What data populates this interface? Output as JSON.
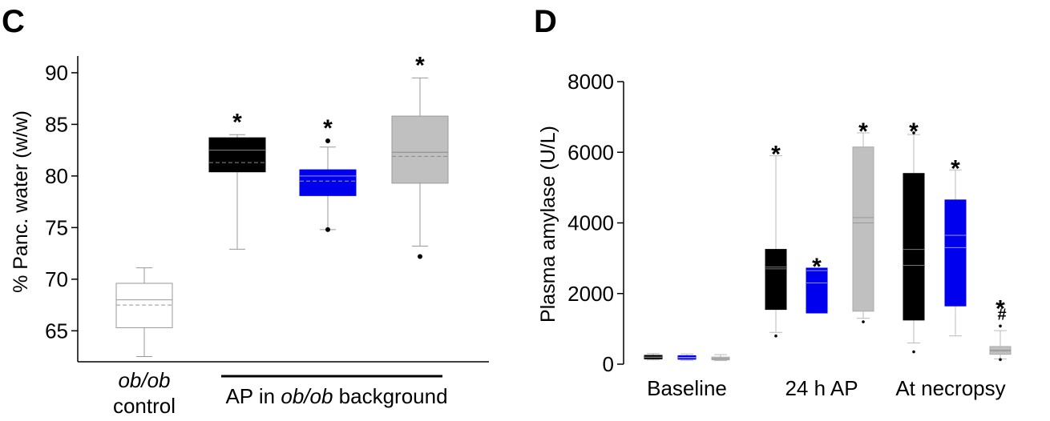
{
  "chart_data": [
    {
      "type": "box",
      "panel": "C",
      "ylabel": "% Panc. water (w/w)",
      "ylim": [
        62,
        91
      ],
      "yticks": [
        65,
        70,
        75,
        80,
        85,
        90
      ],
      "category_labels": [
        {
          "parts": [
            {
              "text": "ob/ob",
              "italic": true
            }
          ],
          "line2": "control"
        },
        {
          "parts": [
            {
              "text": "AP in ",
              "italic": false
            },
            {
              "text": "ob/ob",
              "italic": true
            },
            {
              "text": " background",
              "italic": false
            }
          ],
          "line2": ""
        }
      ],
      "groups": [
        {
          "color": "#ffffff",
          "stroke": "#999999",
          "median_color": "#999999",
          "min": 62.5,
          "q1": 65.3,
          "median": 68.0,
          "mean": 67.5,
          "q3": 69.6,
          "max": 71.1,
          "outliers": [],
          "marker": ""
        },
        {
          "color": "#000000",
          "stroke": "#000000",
          "median_color": "#888888",
          "min": 72.9,
          "q1": 80.4,
          "median": 82.5,
          "mean": 81.3,
          "q3": 83.7,
          "max": 84.0,
          "outliers": [],
          "marker": "*"
        },
        {
          "color": "#0000ee",
          "stroke": "#0000ee",
          "median_color": "#9999ff",
          "min": 74.8,
          "q1": 78.1,
          "median": 80.0,
          "mean": 79.5,
          "q3": 80.6,
          "max": 82.8,
          "outliers": [
            83.4,
            74.8
          ],
          "marker": "*"
        },
        {
          "color": "#c0c0c0",
          "stroke": "#999999",
          "median_color": "#888888",
          "min": 73.2,
          "q1": 79.3,
          "median": 82.3,
          "mean": 81.9,
          "q3": 85.8,
          "max": 89.5,
          "outliers": [
            72.2
          ],
          "marker": "*"
        }
      ]
    },
    {
      "type": "box",
      "panel": "D",
      "ylabel": "Plasma amylase (U/L)",
      "ylim": [
        0,
        8000
      ],
      "yticks": [
        0,
        2000,
        4000,
        6000,
        8000
      ],
      "categories": [
        "Baseline",
        "24 h AP",
        "At necropsy"
      ],
      "series_colors": [
        "#000000",
        "#0000ee",
        "#c0c0c0"
      ],
      "groups": [
        {
          "category": "Baseline",
          "series": 0,
          "min": 120,
          "q1": 150,
          "median": 200,
          "mean": 190,
          "q3": 250,
          "max": 300,
          "outliers": [],
          "marker": ""
        },
        {
          "category": "Baseline",
          "series": 1,
          "min": 110,
          "q1": 140,
          "median": 190,
          "mean": 180,
          "q3": 240,
          "max": 290,
          "outliers": [],
          "marker": ""
        },
        {
          "category": "Baseline",
          "series": 2,
          "min": 100,
          "q1": 120,
          "median": 160,
          "mean": 150,
          "q3": 200,
          "max": 270,
          "outliers": [],
          "marker": ""
        },
        {
          "category": "24 h AP",
          "series": 0,
          "min": 900,
          "q1": 1550,
          "median": 2750,
          "mean": 2700,
          "q3": 3250,
          "max": 5900,
          "outliers": [
            800
          ],
          "marker": "*"
        },
        {
          "category": "24 h AP",
          "series": 1,
          "min": 1450,
          "q1": 1450,
          "median": 2650,
          "mean": 2300,
          "q3": 2720,
          "max": 2720,
          "outliers": [],
          "marker": "*"
        },
        {
          "category": "24 h AP",
          "series": 2,
          "min": 1300,
          "q1": 1500,
          "median": 4150,
          "mean": 4000,
          "q3": 6150,
          "max": 6550,
          "outliers": [
            1200
          ],
          "marker": "*"
        },
        {
          "category": "At necropsy",
          "series": 0,
          "min": 600,
          "q1": 1250,
          "median": 3250,
          "mean": 2800,
          "q3": 5400,
          "max": 6500,
          "outliers": [
            6550,
            350
          ],
          "marker": "*"
        },
        {
          "category": "At necropsy",
          "series": 1,
          "min": 800,
          "q1": 1650,
          "median": 3650,
          "mean": 3300,
          "q3": 4650,
          "max": 5500,
          "outliers": [],
          "marker": "*"
        },
        {
          "category": "At necropsy",
          "series": 2,
          "min": 150,
          "q1": 280,
          "median": 400,
          "mean": 370,
          "q3": 500,
          "max": 950,
          "outliers": [
            1080,
            130
          ],
          "marker": "*",
          "marker2": "#"
        }
      ]
    }
  ]
}
